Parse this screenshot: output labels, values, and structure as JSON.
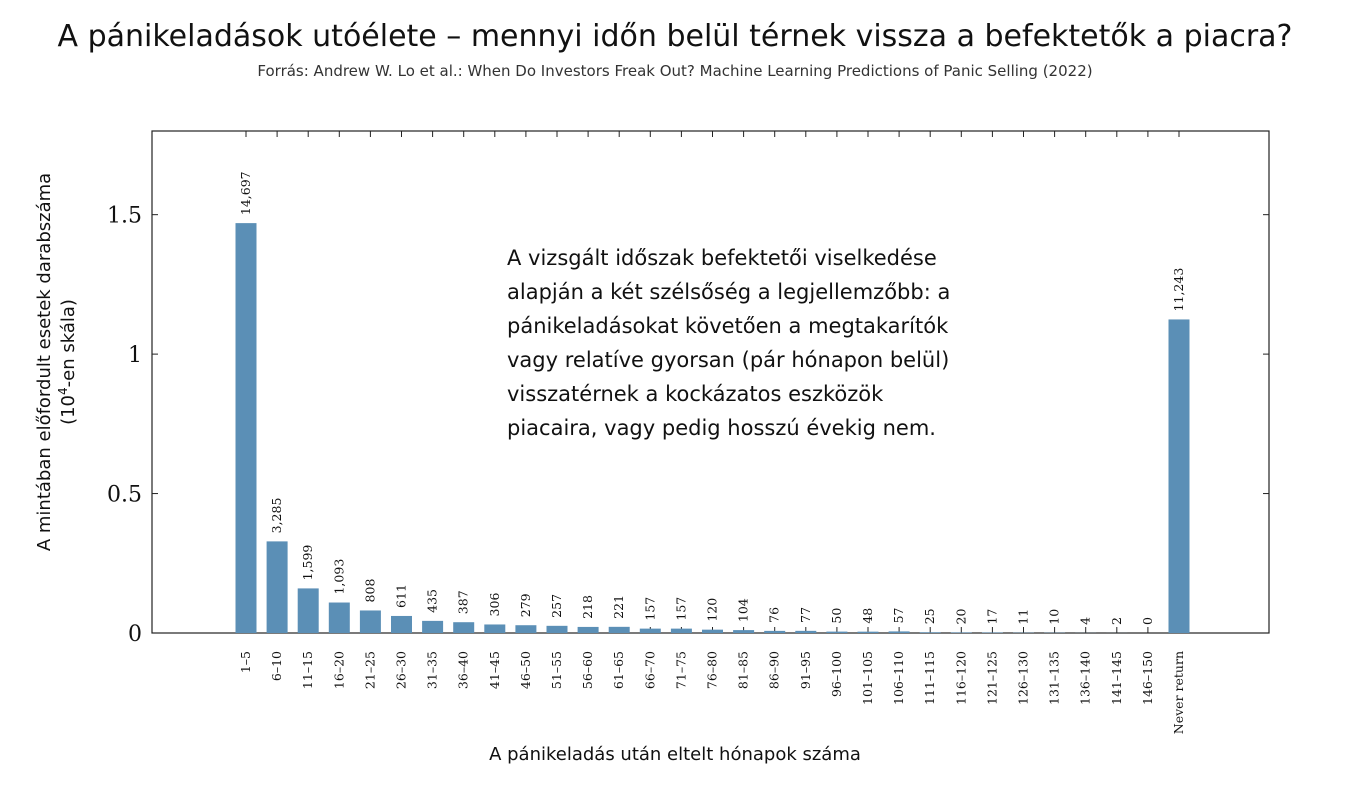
{
  "chart_data": {
    "type": "bar",
    "title": "A pánikeladások utóélete – mennyi időn belül térnek vissza a befektetők a piacra?",
    "subtitle": "Forrás: Andrew W. Lo et al.: When Do Investors Freak Out? Machine Learning Predictions of Panic Selling (2022)",
    "xlabel": "A pánikeladás után eltelt hónapok száma",
    "ylabel_line1": "A mintában előfordult esetek darabszáma",
    "ylabel_line2_prefix": "(10",
    "ylabel_line2_sup": "4",
    "ylabel_line2_suffix": "-en skála)",
    "ylim": [
      0,
      1.8
    ],
    "yticks": [
      0,
      0.5,
      1,
      1.5
    ],
    "ytick_labels": [
      "0",
      "0.5",
      "1",
      "1.5"
    ],
    "bar_color": "#5b8fb6",
    "categories": [
      "1–5",
      "6–10",
      "11–15",
      "16–20",
      "21–25",
      "26–30",
      "31–35",
      "36–40",
      "41–45",
      "46–50",
      "51–55",
      "56–60",
      "61–65",
      "66–70",
      "71–75",
      "76–80",
      "81–85",
      "86–90",
      "91–95",
      "96–100",
      "101–105",
      "106–110",
      "111–115",
      "116–120",
      "121–125",
      "126–130",
      "131–135",
      "136–140",
      "141–145",
      "146–150",
      "Never return"
    ],
    "values": [
      14697,
      3285,
      1599,
      1093,
      808,
      611,
      435,
      387,
      306,
      279,
      257,
      218,
      221,
      157,
      157,
      120,
      104,
      76,
      77,
      50,
      48,
      57,
      25,
      20,
      17,
      11,
      10,
      4,
      2,
      0,
      11243
    ],
    "value_labels": [
      "14,697",
      "3,285",
      "1,599",
      "1,093",
      "808",
      "611",
      "435",
      "387",
      "306",
      "279",
      "257",
      "218",
      "221",
      "157",
      "157",
      "120",
      "104",
      "76",
      "77",
      "50",
      "48",
      "57",
      "25",
      "20",
      "17",
      "11",
      "10",
      "4",
      "2",
      "0",
      "11,243"
    ],
    "annotation": [
      "A vizsgált időszak befektetői viselkedése",
      "alapján a két szélsőség a legjellemzőbb: a",
      "pánikeladásokat követően a megtakarítók",
      "vagy relatíve gyorsan (pár hónapon belül)",
      "visszatérnek a kockázatos eszközök",
      "piacaira, vagy pedig hosszú évekig nem."
    ]
  }
}
